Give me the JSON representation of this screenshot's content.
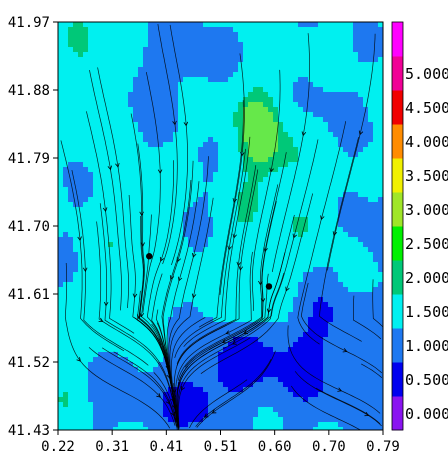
{
  "chart_data": {
    "type": "heatmap",
    "title": "",
    "xlabel": "",
    "ylabel": "",
    "x_ticks": [
      "0.22",
      "0.31",
      "0.41",
      "0.51",
      "0.60",
      "0.70",
      "0.79"
    ],
    "y_ticks": [
      "41.97",
      "41.88",
      "41.79",
      "41.70",
      "41.61",
      "41.52",
      "41.43"
    ],
    "xlim": [
      0.22,
      0.79
    ],
    "ylim": [
      41.43,
      41.97
    ],
    "colorbar": {
      "labels": [
        "0.000",
        "0.500",
        "1.000",
        "1.500",
        "2.000",
        "2.500",
        "3.000",
        "3.500",
        "4.000",
        "4.500",
        "5.000"
      ],
      "range": [
        -0.25,
        5.75
      ],
      "bins": [
        {
          "from": -0.25,
          "to": 0.25,
          "color": "#8a14f0"
        },
        {
          "from": 0.25,
          "to": 0.75,
          "color": "#0000ee"
        },
        {
          "from": 0.75,
          "to": 1.25,
          "color": "#1e78f0"
        },
        {
          "from": 1.25,
          "to": 1.75,
          "color": "#00f0f0"
        },
        {
          "from": 1.75,
          "to": 2.25,
          "color": "#00c878"
        },
        {
          "from": 2.25,
          "to": 2.75,
          "color": "#00f000"
        },
        {
          "from": 2.75,
          "to": 3.25,
          "color": "#a0e628"
        },
        {
          "from": 3.25,
          "to": 3.75,
          "color": "#f0f000"
        },
        {
          "from": 3.75,
          "to": 4.25,
          "color": "#ff8c00"
        },
        {
          "from": 4.25,
          "to": 4.75,
          "color": "#f00000"
        },
        {
          "from": 4.75,
          "to": 5.25,
          "color": "#f00096"
        },
        {
          "from": 5.25,
          "to": 5.75,
          "color": "#ff00ff"
        }
      ]
    },
    "field_color_levels": [
      {
        "level": "0.5-1.0",
        "color": "#1e78f0"
      },
      {
        "level": "0.0-0.5",
        "color": "#0000ee"
      },
      {
        "level": "1.0-1.5",
        "color": "#00f0f0"
      },
      {
        "level": "1.5-2.0",
        "color": "#00c878"
      },
      {
        "level": "2.0-2.5",
        "color": "#66e84a"
      }
    ],
    "markers": [
      {
        "x": 0.38,
        "y": 41.66
      },
      {
        "x": 0.59,
        "y": 41.62
      }
    ],
    "streamlines": "present",
    "grid": false,
    "legend": "colorbar-right"
  }
}
